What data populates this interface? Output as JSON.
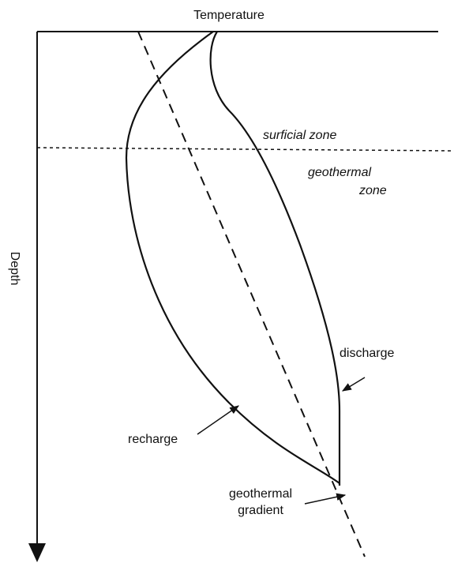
{
  "axes": {
    "x_label": "Temperature",
    "y_label": "Depth"
  },
  "zones": {
    "surficial": "surficial zone",
    "geothermal": [
      "geothermal",
      "zone"
    ]
  },
  "curves": {
    "discharge": "discharge",
    "recharge": "recharge",
    "gradient": [
      "geothermal",
      "gradient"
    ]
  }
}
